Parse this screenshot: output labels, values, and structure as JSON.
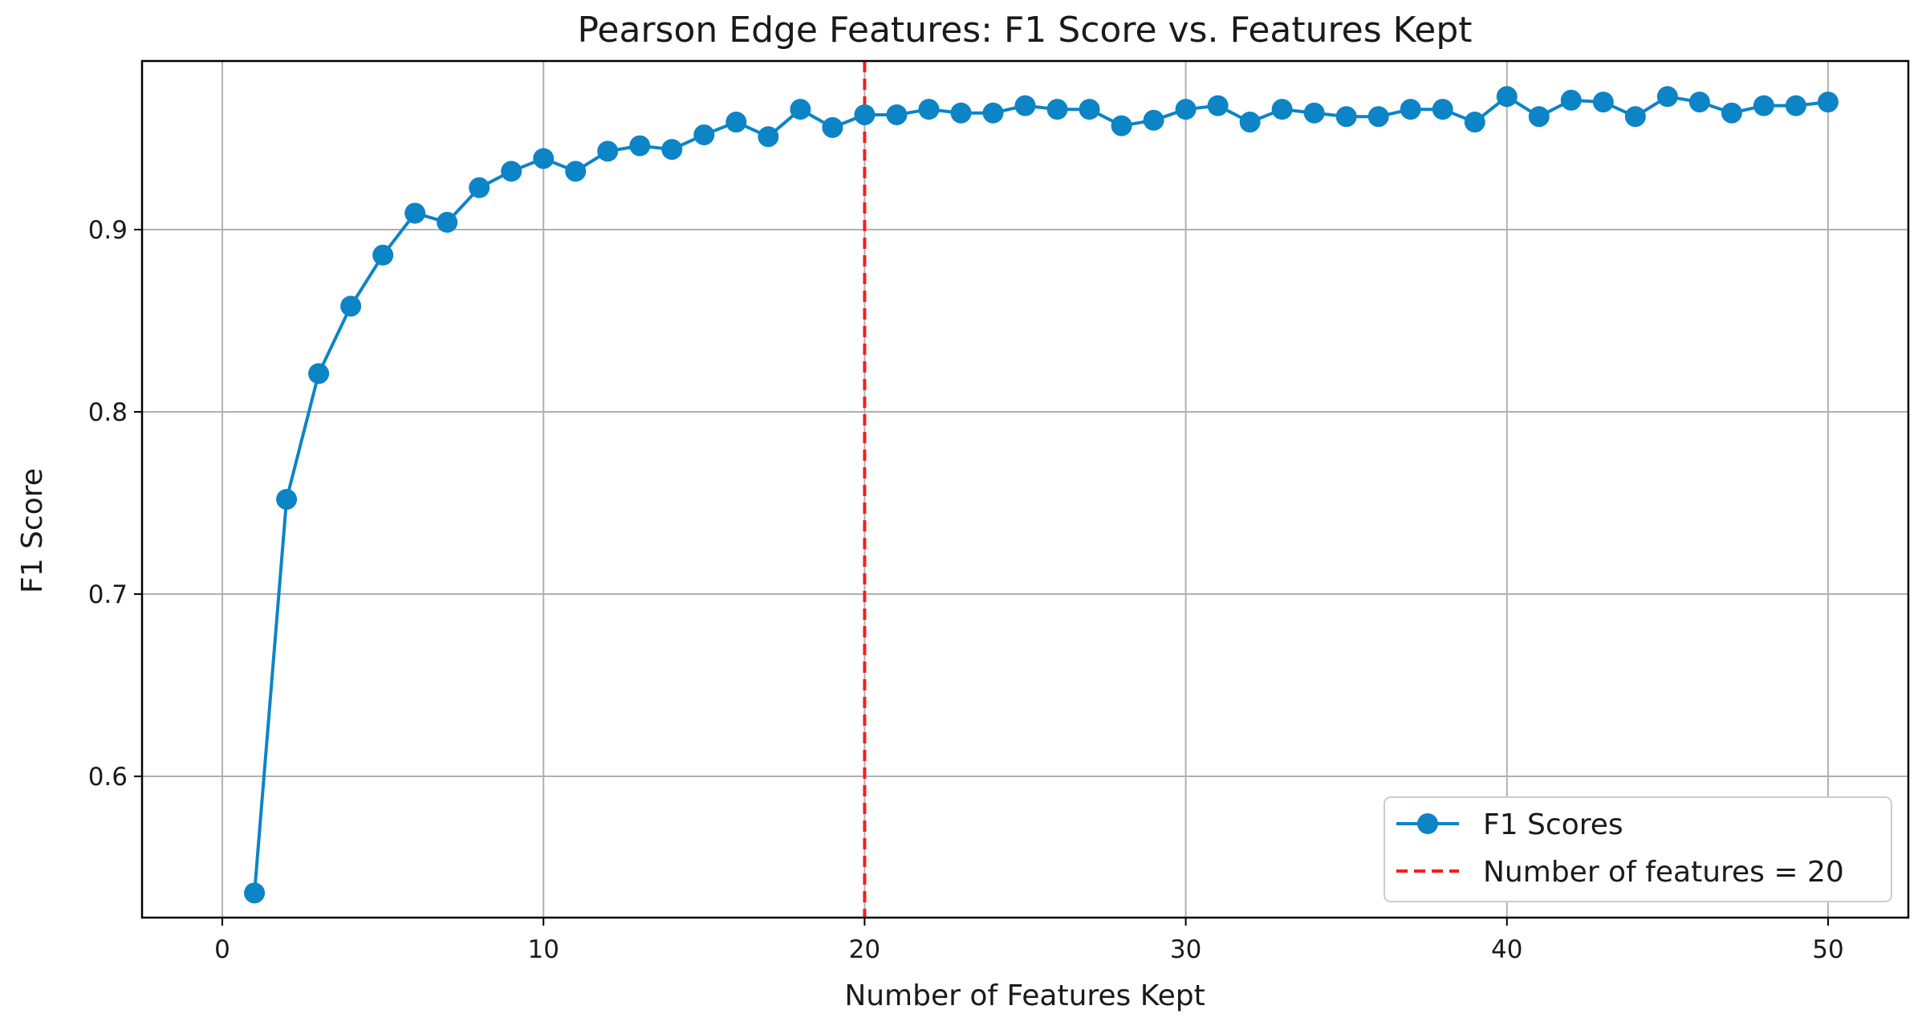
{
  "chart_data": {
    "type": "line",
    "title": "Pearson Edge Features: F1 Score vs. Features Kept",
    "xlabel": "Number of Features Kept",
    "ylabel": "F1 Score",
    "xlim": [
      -2.5,
      52.5
    ],
    "ylim": [
      0.5225,
      0.9925
    ],
    "x_ticks": [
      0,
      10,
      20,
      30,
      40,
      50
    ],
    "x_tick_labels": [
      "0",
      "10",
      "20",
      "30",
      "40",
      "50"
    ],
    "y_ticks": [
      0.6,
      0.7,
      0.8,
      0.9
    ],
    "y_tick_labels": [
      "0.6",
      "0.7",
      "0.8",
      "0.9"
    ],
    "grid": true,
    "legend_position": "lower-right",
    "series": [
      {
        "name": "F1 Scores",
        "color": "#0c84c6",
        "marker": "circle",
        "x": [
          1,
          2,
          3,
          4,
          5,
          6,
          7,
          8,
          9,
          10,
          11,
          12,
          13,
          14,
          15,
          16,
          17,
          18,
          19,
          20,
          21,
          22,
          23,
          24,
          25,
          26,
          27,
          28,
          29,
          30,
          31,
          32,
          33,
          34,
          35,
          36,
          37,
          38,
          39,
          40,
          41,
          42,
          43,
          44,
          45,
          46,
          47,
          48,
          49,
          50
        ],
        "values": [
          0.536,
          0.752,
          0.821,
          0.858,
          0.886,
          0.909,
          0.904,
          0.923,
          0.932,
          0.939,
          0.932,
          0.943,
          0.946,
          0.944,
          0.952,
          0.959,
          0.951,
          0.966,
          0.956,
          0.963,
          0.963,
          0.966,
          0.964,
          0.964,
          0.968,
          0.966,
          0.966,
          0.957,
          0.96,
          0.966,
          0.968,
          0.959,
          0.966,
          0.964,
          0.962,
          0.962,
          0.966,
          0.966,
          0.959,
          0.973,
          0.962,
          0.971,
          0.97,
          0.962,
          0.973,
          0.97,
          0.964,
          0.968,
          0.968,
          0.97
        ]
      }
    ],
    "reference_line": {
      "name": "Number of features = 20",
      "orientation": "vertical",
      "x": 20,
      "color": "#ff1a1a",
      "style": "dashed"
    }
  }
}
